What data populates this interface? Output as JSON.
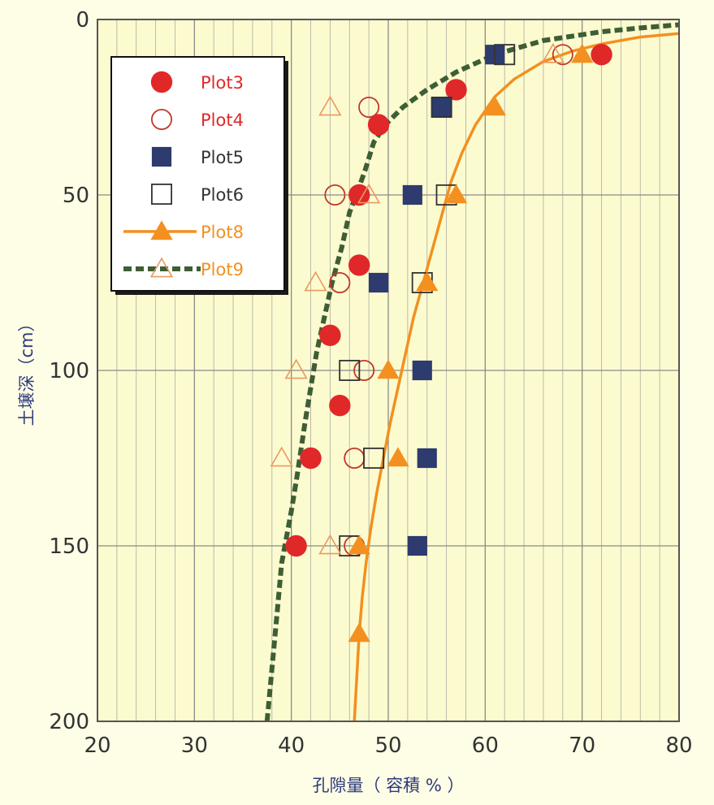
{
  "chart_data": {
    "type": "scatter",
    "xlabel": "孔隙量（ 容積 % ）",
    "ylabel": "土壌深（cm）",
    "xlim": [
      20,
      80
    ],
    "ylim": [
      0,
      200
    ],
    "y_inverted": true,
    "x_ticks": [
      "20",
      "30",
      "40",
      "50",
      "60",
      "70",
      "80"
    ],
    "y_ticks": [
      "0",
      "50",
      "100",
      "150",
      "200"
    ],
    "grid": true,
    "legend_position": "top-left",
    "series": [
      {
        "name": "Plot3",
        "marker": "filled-circle",
        "color": "#e02828",
        "points": [
          [
            72,
            10
          ],
          [
            57,
            20
          ],
          [
            49,
            30
          ],
          [
            47,
            50
          ],
          [
            47,
            70
          ],
          [
            44,
            90
          ],
          [
            45,
            110
          ],
          [
            42,
            125
          ],
          [
            40.5,
            150
          ]
        ]
      },
      {
        "name": "Plot4",
        "marker": "open-circle",
        "color": "#c0392b",
        "points": [
          [
            68,
            10
          ],
          [
            48,
            25
          ],
          [
            44.5,
            50
          ],
          [
            45,
            75
          ],
          [
            47.5,
            100
          ],
          [
            46.5,
            125
          ],
          [
            46.5,
            150
          ]
        ]
      },
      {
        "name": "Plot5",
        "marker": "filled-square",
        "color": "#2e3b6e",
        "points": [
          [
            61,
            10
          ],
          [
            55.5,
            25
          ],
          [
            52.5,
            50
          ],
          [
            49,
            75
          ],
          [
            53.5,
            100
          ],
          [
            54,
            125
          ],
          [
            53,
            150
          ]
        ]
      },
      {
        "name": "Plot6",
        "marker": "open-square",
        "color": "#333333",
        "points": [
          [
            62,
            10
          ],
          [
            55.5,
            25
          ],
          [
            56,
            50
          ],
          [
            53.5,
            75
          ],
          [
            46,
            100
          ],
          [
            48.5,
            125
          ],
          [
            46,
            150
          ]
        ]
      },
      {
        "name": "Plot8",
        "marker": "filled-triangle-line",
        "color": "#f39020",
        "points": [
          [
            70,
            10
          ],
          [
            61,
            25
          ],
          [
            57,
            50
          ],
          [
            54,
            75
          ],
          [
            50,
            100
          ],
          [
            51,
            125
          ],
          [
            47,
            150
          ],
          [
            47,
            175
          ]
        ]
      },
      {
        "name": "Plot9",
        "marker": "open-triangle-dashed",
        "color": "#3e5e35",
        "points": [
          [
            67,
            10
          ],
          [
            44,
            25
          ],
          [
            48,
            50
          ],
          [
            42.5,
            75
          ],
          [
            40.5,
            100
          ],
          [
            39,
            125
          ],
          [
            44,
            150
          ]
        ]
      }
    ],
    "curves": [
      {
        "series": "Plot9",
        "style": "dashed",
        "color": "#3e5e35",
        "points": [
          [
            37.5,
            200
          ],
          [
            38,
            185
          ],
          [
            38.5,
            170
          ],
          [
            39,
            155
          ],
          [
            40,
            140
          ],
          [
            40.6,
            130
          ],
          [
            41.4,
            115
          ],
          [
            42,
            105
          ],
          [
            42.6,
            95
          ],
          [
            43.4,
            85
          ],
          [
            44.2,
            75
          ],
          [
            45.2,
            65
          ],
          [
            46,
            55
          ],
          [
            46.7,
            50
          ],
          [
            47.6,
            43
          ],
          [
            48.5,
            35
          ],
          [
            49.7,
            30
          ],
          [
            51.5,
            25
          ],
          [
            54,
            20
          ],
          [
            57,
            15
          ],
          [
            61,
            10
          ],
          [
            66,
            6
          ],
          [
            72,
            3.5
          ],
          [
            76,
            2.4
          ],
          [
            80,
            1.5
          ]
        ]
      },
      {
        "series": "Plot8",
        "style": "solid",
        "color": "#f39020",
        "points": [
          [
            46.5,
            200
          ],
          [
            46.8,
            185
          ],
          [
            47,
            175
          ],
          [
            47.3,
            165
          ],
          [
            47.7,
            155
          ],
          [
            48.2,
            145
          ],
          [
            48.8,
            135
          ],
          [
            49.5,
            125
          ],
          [
            50.2,
            115
          ],
          [
            51,
            105
          ],
          [
            51.8,
            95
          ],
          [
            52.6,
            85
          ],
          [
            53.6,
            75
          ],
          [
            54.6,
            65
          ],
          [
            55.6,
            55
          ],
          [
            56.5,
            46
          ],
          [
            57.6,
            38
          ],
          [
            59,
            30
          ],
          [
            61,
            22
          ],
          [
            63,
            17
          ],
          [
            66,
            12
          ],
          [
            69,
            9
          ],
          [
            72,
            7
          ],
          [
            76,
            5
          ],
          [
            80,
            4
          ]
        ]
      }
    ]
  }
}
